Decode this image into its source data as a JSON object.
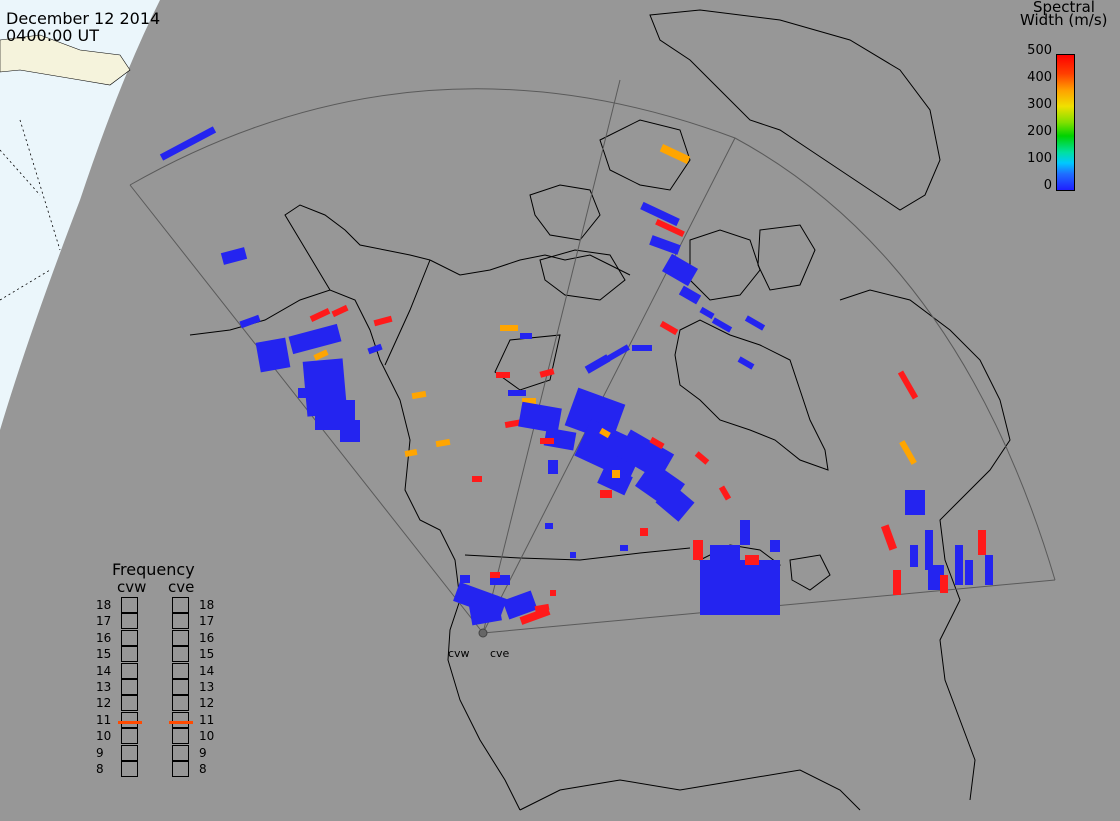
{
  "header": {
    "date": "December 12 2014",
    "time": "0400:00 UT"
  },
  "colorbar": {
    "title_line1": "Spectral",
    "title_line2": "Width (m/s)",
    "ticks": [
      "500",
      "400",
      "300",
      "200",
      "100",
      "0"
    ]
  },
  "frequency_panel": {
    "title": "Frequency",
    "radars": [
      {
        "name": "cvw",
        "current_mhz": 11
      },
      {
        "name": "cve",
        "current_mhz": 11
      }
    ],
    "scale": [
      "18",
      "17",
      "16",
      "15",
      "14",
      "13",
      "12",
      "11",
      "10",
      "9",
      "8"
    ]
  },
  "sites": {
    "west": "cvw",
    "east": "cve"
  },
  "colors": {
    "background": "#979797",
    "land": "#979797",
    "dayside": "#ebf6fb",
    "coast": "#000000",
    "low_width": "#2424f0",
    "mid_width": "#ffa500",
    "high_width": "#ff1a1a",
    "freq_marker": "#ff4a00"
  }
}
